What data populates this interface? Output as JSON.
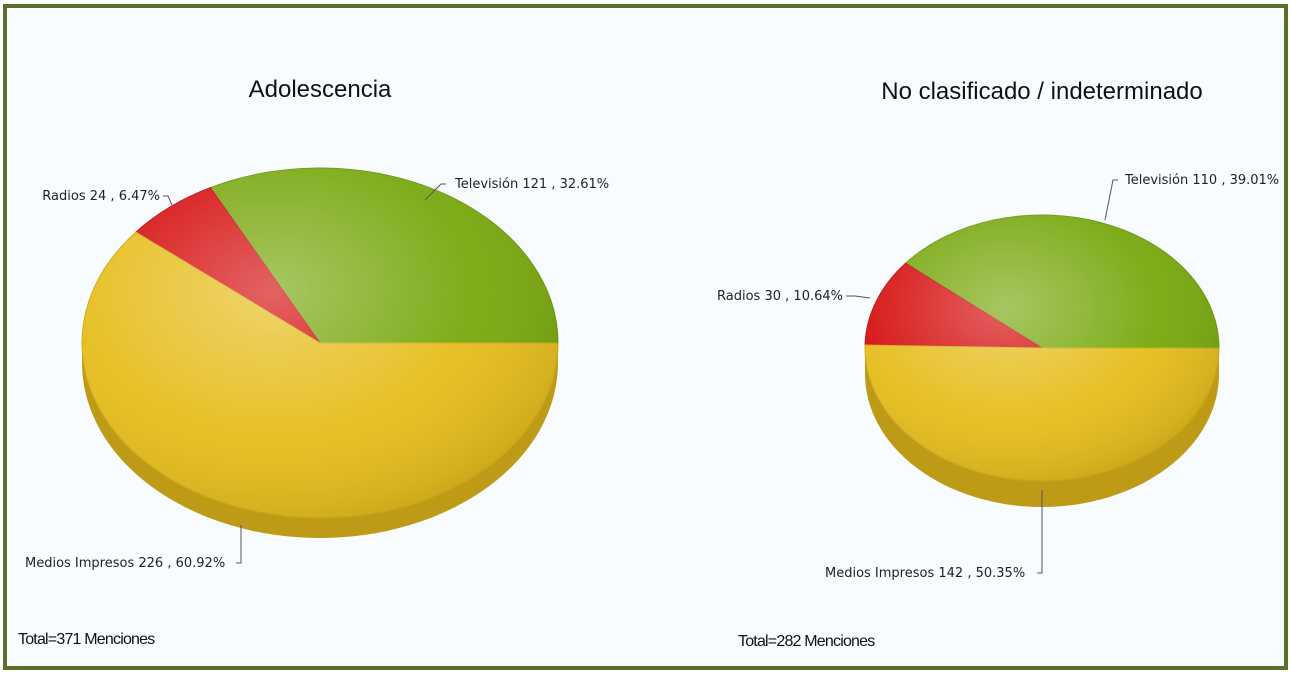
{
  "chart_data": [
    {
      "type": "pie",
      "title": "Adolescencia",
      "categories": [
        "Televisión",
        "Radios",
        "Medios Impresos"
      ],
      "values": [
        121,
        24,
        226
      ],
      "value_labels": [
        "121 , 32.61%",
        "24 , 6.47%",
        "226 , 60.92%"
      ],
      "colors": [
        "#78a80e",
        "#d50e0e",
        "#e6bd1c"
      ],
      "total_label": "Total=371 Menciones"
    },
    {
      "type": "pie",
      "title": "No clasificado / indeterminado",
      "categories": [
        "Televisión",
        "Radios",
        "Medios Impresos"
      ],
      "values": [
        110,
        30,
        142
      ],
      "value_labels": [
        "110 , 39.01%",
        "30 , 10.64%",
        "142 , 50.35%"
      ],
      "colors": [
        "#78a80e",
        "#d50e0e",
        "#e6bd1c"
      ],
      "total_label": "Total=282 Menciones"
    }
  ]
}
